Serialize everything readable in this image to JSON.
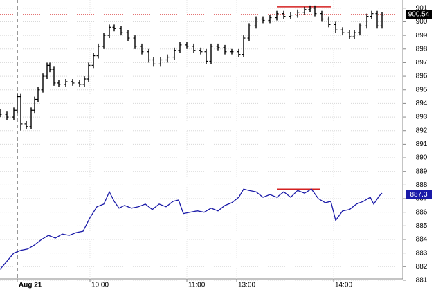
{
  "chart_data": {
    "type": "price",
    "xlim": [
      0,
      116.4
    ],
    "ylim": [
      881.1,
      901.6
    ],
    "xticks": [
      {
        "value": 5,
        "label": "Aug 21"
      },
      {
        "value": 26,
        "label": "10:00"
      },
      {
        "value": 54,
        "label": "11:00"
      },
      {
        "value": 68.4,
        "label": "13:00"
      },
      {
        "value": 96.4,
        "label": "14:00"
      }
    ],
    "yticks": [
      881,
      882,
      883,
      884,
      885,
      886,
      887,
      888,
      889,
      890,
      891,
      892,
      893,
      894,
      895,
      896,
      897,
      898,
      899,
      900,
      901
    ],
    "grid": true,
    "series": [
      {
        "type": "ohlc",
        "color": "#000000",
        "x": [
          0,
          2,
          4,
          5,
          6,
          7.6,
          9,
          10,
          11,
          12.4,
          13.6,
          14.4,
          15.6,
          17,
          19,
          21,
          23,
          24.4,
          25.6,
          27,
          28.4,
          30,
          31.6,
          33,
          35,
          37,
          39,
          41,
          43,
          44.4,
          46.4,
          48.4,
          50.4,
          52,
          54,
          56,
          58,
          59.6,
          61,
          63,
          65,
          67,
          69,
          70.4,
          72,
          74,
          76,
          78,
          80,
          82,
          84,
          86,
          88,
          89.6,
          91,
          93,
          95,
          97,
          99,
          101,
          102.4,
          104,
          106,
          107.4,
          109,
          110.4
        ],
        "open": [
          893.4,
          893.2,
          893.0,
          893.5,
          894.5,
          892.5,
          892.3,
          893.5,
          894.3,
          895,
          896,
          896.8,
          896.5,
          895.5,
          895.4,
          895.6,
          895.5,
          895.4,
          895.8,
          896.8,
          897.5,
          898.2,
          899,
          899.6,
          899.5,
          899.2,
          898.8,
          898.2,
          897.8,
          897.2,
          896.9,
          897.2,
          897.4,
          897.9,
          898.3,
          898.2,
          897.9,
          897.8,
          897.1,
          898.2,
          898.1,
          897.8,
          897.8,
          897.6,
          898.8,
          899.7,
          900.2,
          900.1,
          900.3,
          900.6,
          900.4,
          900.5,
          900.7,
          900.9,
          901.0,
          900.6,
          900.2,
          899.8,
          899.4,
          899.2,
          898.9,
          899.2,
          899.7,
          900.4,
          900.6,
          899.7
        ],
        "high": [
          893.6,
          893.4,
          893.7,
          894.7,
          894.7,
          892.7,
          893.7,
          894.5,
          895.2,
          896.2,
          897.0,
          897.0,
          896.7,
          895.7,
          895.8,
          895.8,
          895.7,
          896.0,
          897.0,
          897.7,
          898.4,
          899.2,
          899.8,
          899.8,
          899.7,
          899.4,
          899.0,
          898.4,
          898.0,
          897.4,
          897.4,
          897.6,
          898.1,
          898.5,
          898.5,
          898.4,
          898.1,
          898.0,
          898.4,
          898.4,
          898.3,
          898.0,
          898.0,
          899.0,
          899.9,
          900.4,
          900.4,
          900.5,
          900.8,
          900.8,
          900.7,
          900.9,
          901.1,
          901.2,
          901.2,
          900.8,
          900.4,
          900.0,
          899.6,
          899.4,
          899.4,
          899.9,
          900.6,
          900.8,
          900.8,
          900.7
        ],
        "low": [
          893.0,
          892.8,
          892.8,
          893.3,
          892.0,
          892.1,
          892.1,
          893.3,
          894.1,
          894.8,
          895.8,
          896.3,
          895.3,
          895.2,
          895.2,
          895.3,
          895.2,
          895.2,
          895.6,
          896.6,
          897.3,
          898.0,
          898.8,
          899.3,
          899.0,
          898.6,
          898.0,
          897.6,
          897.0,
          896.7,
          896.7,
          897.0,
          897.2,
          897.7,
          898.0,
          897.7,
          897.6,
          896.9,
          896.9,
          897.9,
          897.6,
          897.6,
          897.4,
          897.4,
          898.6,
          899.5,
          899.9,
          899.9,
          900.1,
          900.2,
          900.2,
          900.3,
          900.5,
          900.7,
          900.4,
          900.0,
          899.6,
          899.2,
          899.0,
          898.7,
          898.7,
          899.0,
          899.5,
          900.2,
          899.5,
          899.5
        ],
        "close": [
          893.2,
          893.0,
          893.5,
          894.5,
          892.5,
          892.3,
          893.5,
          894.3,
          895,
          896,
          896.8,
          896.5,
          895.5,
          895.4,
          895.6,
          895.5,
          895.4,
          895.8,
          896.8,
          897.5,
          898.2,
          899,
          899.6,
          899.5,
          899.2,
          898.8,
          898.2,
          897.8,
          897.2,
          896.9,
          897.2,
          897.4,
          897.9,
          898.3,
          898.2,
          897.9,
          897.8,
          897.1,
          898.2,
          898.1,
          897.8,
          897.8,
          897.6,
          898.8,
          899.7,
          900.2,
          900.1,
          900.3,
          900.6,
          900.4,
          900.5,
          900.7,
          900.9,
          901.0,
          900.6,
          900.2,
          899.8,
          899.4,
          899.2,
          898.9,
          899.2,
          899.7,
          900.4,
          900.6,
          899.7,
          900.5
        ]
      },
      {
        "type": "line",
        "color": "#1a1aa8",
        "x": [
          0,
          2,
          4,
          6,
          8,
          10,
          12,
          14,
          16,
          18,
          20,
          22,
          24,
          26,
          28,
          30,
          31.6,
          33,
          34.4,
          36,
          38,
          40,
          42,
          44,
          46,
          48,
          50,
          51.6,
          53,
          55,
          57,
          59,
          61,
          63,
          65,
          67,
          69,
          70.4,
          72,
          74,
          76,
          78,
          80,
          82,
          84,
          86,
          88,
          90,
          92,
          94,
          95.6,
          97,
          99,
          101,
          103,
          105,
          107,
          108,
          109.6,
          110.4
        ],
        "values": [
          881.8,
          882.4,
          883,
          883.2,
          883.3,
          883.6,
          884,
          884.3,
          884.1,
          884.4,
          884.3,
          884.5,
          884.6,
          885.6,
          886.4,
          886.6,
          887.5,
          886.8,
          886.3,
          886.5,
          886.3,
          886.4,
          886.6,
          886.2,
          886.6,
          886.4,
          886.8,
          886.9,
          885.9,
          886,
          886.1,
          886,
          886.3,
          886.1,
          886.5,
          886.7,
          887.1,
          887.7,
          887.6,
          887.5,
          887.1,
          887.3,
          887.1,
          887.5,
          887.1,
          887.6,
          887.4,
          887.7,
          887,
          886.7,
          886.8,
          885.4,
          886.1,
          886.2,
          886.6,
          886.8,
          887.1,
          886.6,
          887.2,
          887.4
        ]
      }
    ],
    "markers": [
      {
        "value": 900.54,
        "color": "#000000"
      },
      {
        "value": 887.3,
        "color": "#1a1aa8"
      }
    ],
    "lines": [
      {
        "x": [
          80,
          95.6
        ],
        "value": 901.1,
        "color": "#d42020"
      },
      {
        "x": [
          80,
          92.4
        ],
        "value": 887.7,
        "color": "#d42020"
      }
    ]
  }
}
